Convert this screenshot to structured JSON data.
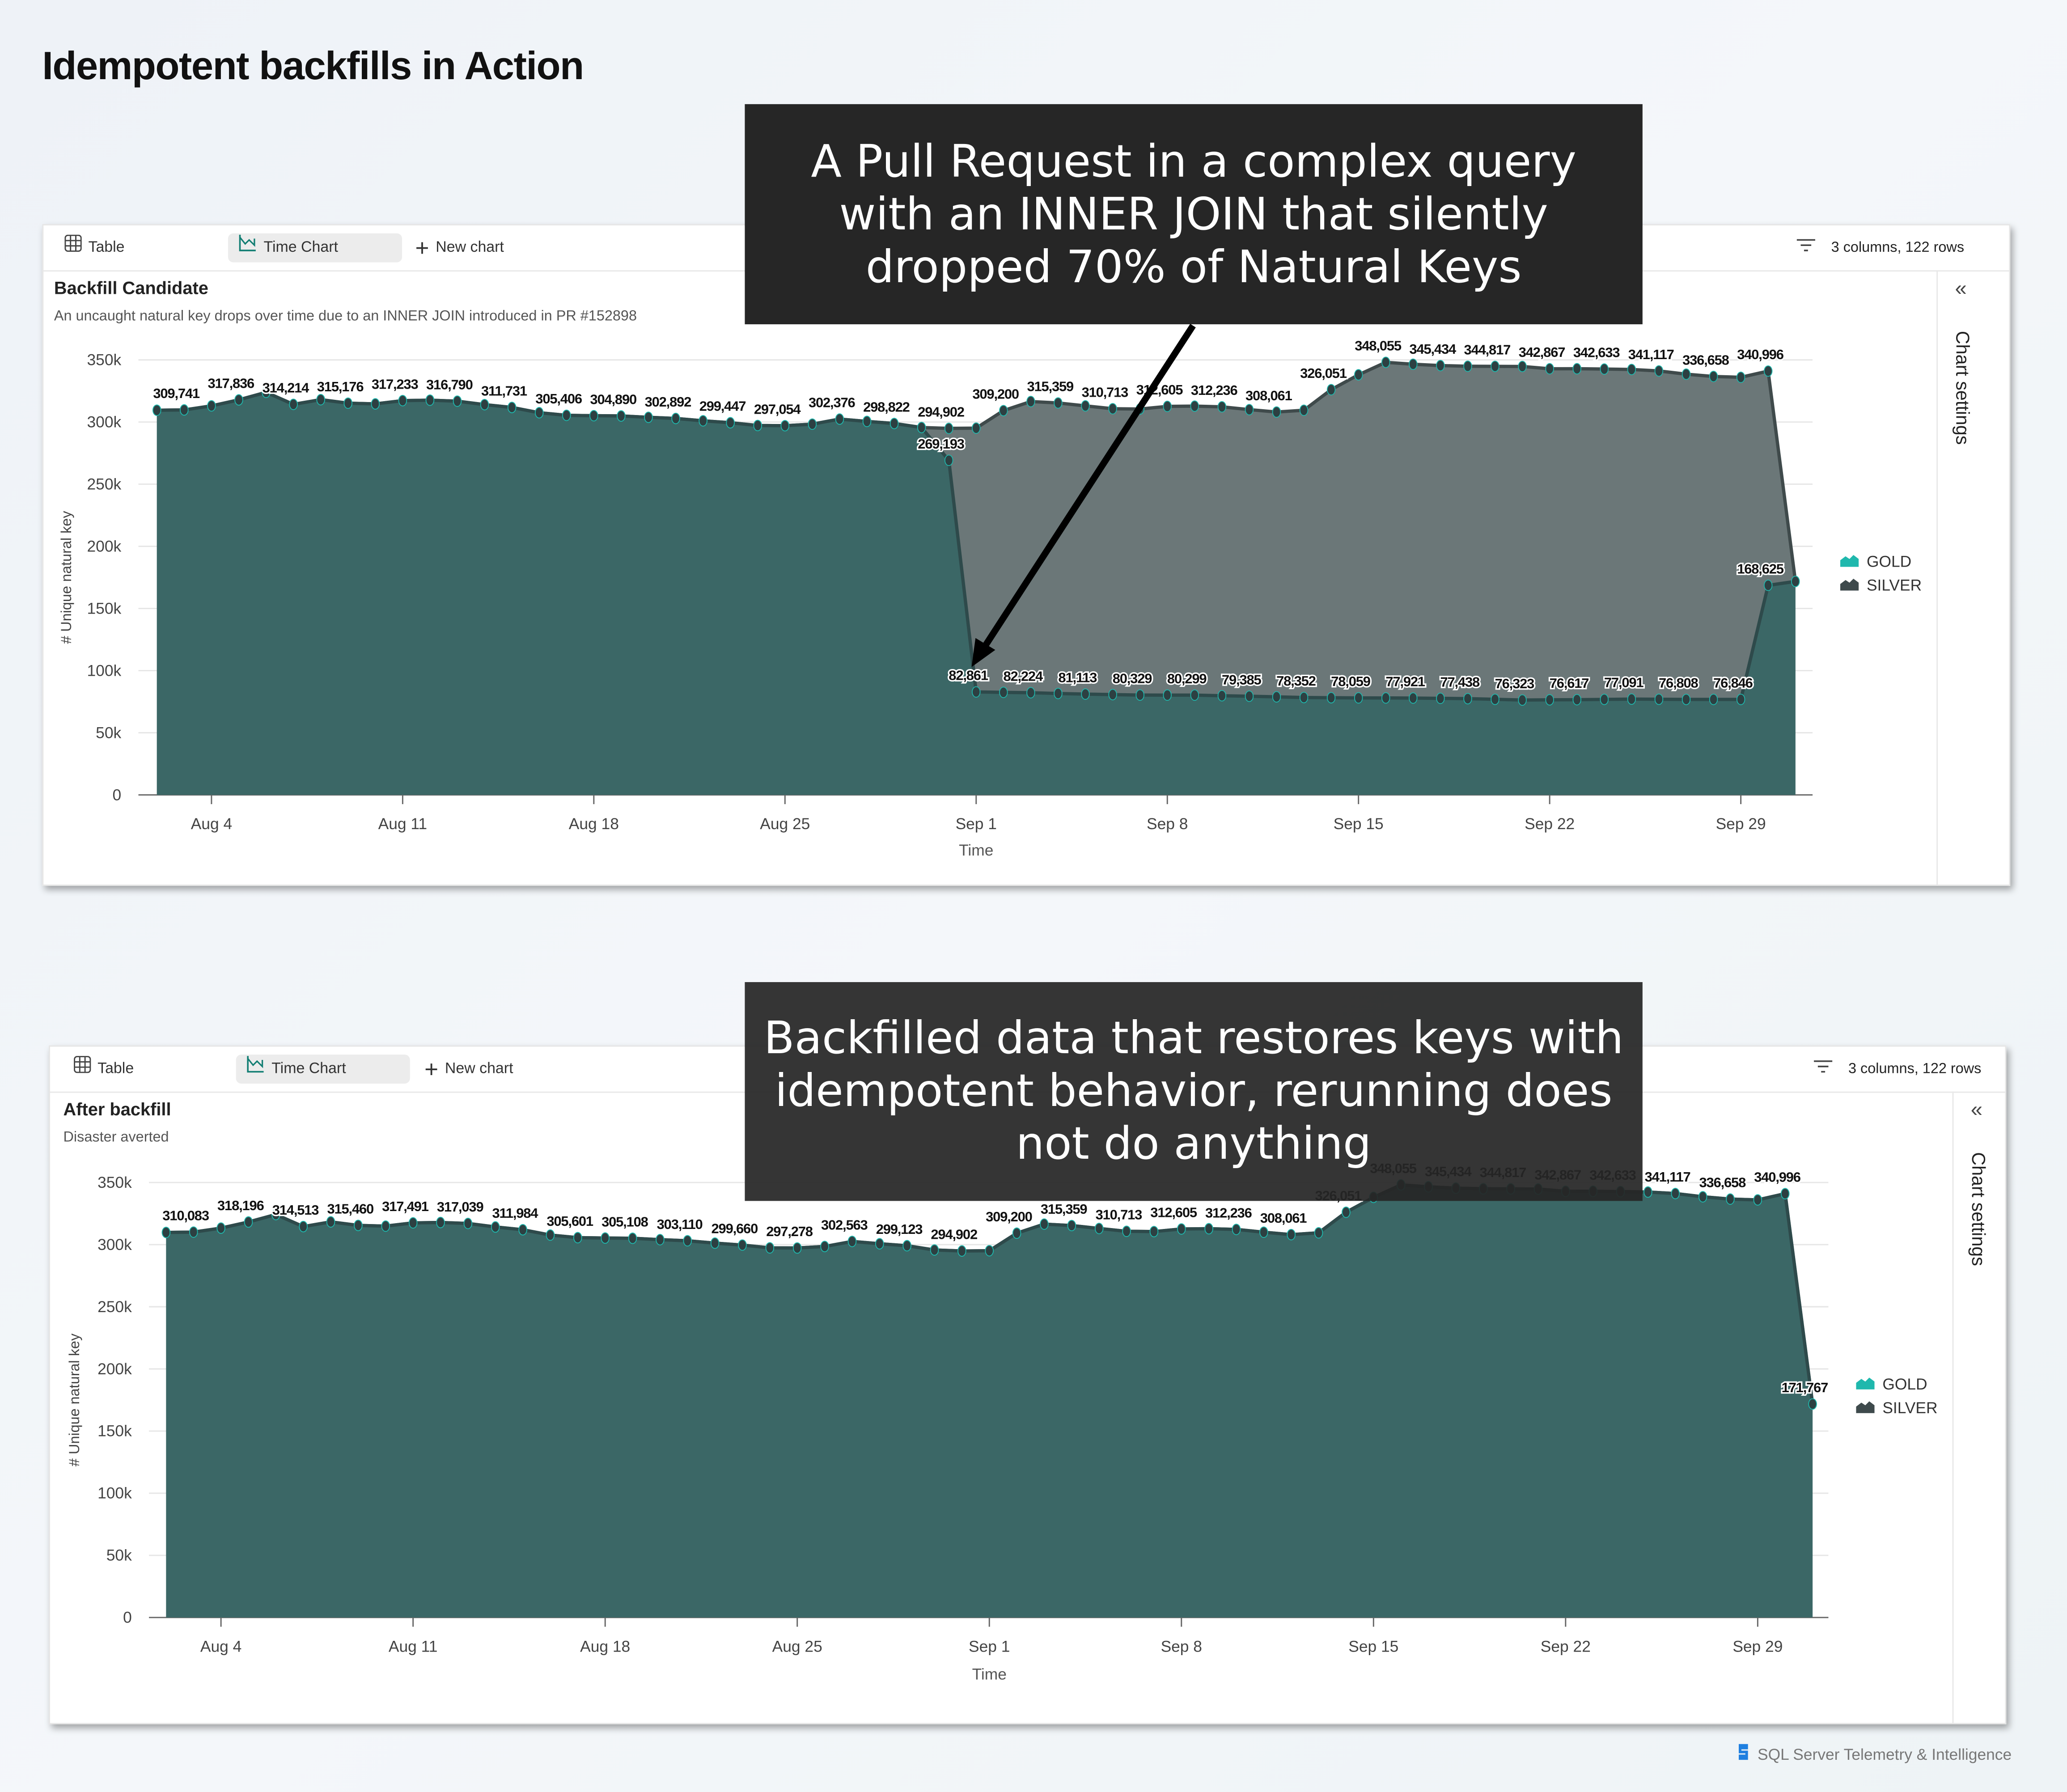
{
  "page_title": "Idempotent backfills in Action",
  "footer": {
    "brand": "SQL Server Telemetry & Intelligence"
  },
  "colors": {
    "gold": "#1fb8ad",
    "silver": "#3e4a4c",
    "gold_area": "#3b6766",
    "silver_area": "#6b7778",
    "callout_bg": "#262626"
  },
  "callouts": [
    {
      "lines": [
        "A Pull Request in a complex query",
        "with an INNER JOIN that silently",
        "dropped 70% of Natural Keys"
      ]
    },
    {
      "lines": [
        "Backfilled data that restores keys with",
        "idempotent behavior, rerunning does",
        "not do anything"
      ]
    }
  ],
  "panels": [
    {
      "toolbar": {
        "table": "Table",
        "time_chart": "Time Chart",
        "new_chart": "New chart",
        "summary": "3 columns, 122 rows"
      },
      "title": "Backfill Candidate",
      "subtitle": "An uncaught natural key drops over time due to an INNER JOIN introduced in PR #152898",
      "side_label": "Chart settings",
      "legend": [
        "GOLD",
        "SILVER"
      ]
    },
    {
      "toolbar": {
        "table": "Table",
        "time_chart": "Time Chart",
        "new_chart": "New chart",
        "summary": "3 columns, 122 rows"
      },
      "title": "After backfill",
      "subtitle": "Disaster averted",
      "side_label": "Chart settings",
      "legend": [
        "GOLD",
        "SILVER"
      ]
    }
  ],
  "chart_data": [
    {
      "type": "area",
      "xlabel": "Time",
      "ylabel": "# Unique natural key",
      "ylim": [
        0,
        350000
      ],
      "y_ticks": [
        {
          "v": 0,
          "t": "0"
        },
        {
          "v": 50000,
          "t": "50k"
        },
        {
          "v": 100000,
          "t": "100k"
        },
        {
          "v": 150000,
          "t": "150k"
        },
        {
          "v": 200000,
          "t": "200k"
        },
        {
          "v": 250000,
          "t": "250k"
        },
        {
          "v": 300000,
          "t": "300k"
        },
        {
          "v": 350000,
          "t": "350k"
        }
      ],
      "x_ticks": [
        "Aug 4",
        "Aug 11",
        "Aug 18",
        "Aug 25",
        "Sep 1",
        "Sep 8",
        "Sep 15",
        "Sep 22",
        "Sep 29"
      ],
      "grid": true,
      "legend_position": "right",
      "x": [
        "Aug 2",
        "Aug 3",
        "Aug 4",
        "Aug 5",
        "Aug 6",
        "Aug 7",
        "Aug 8",
        "Aug 9",
        "Aug 10",
        "Aug 11",
        "Aug 12",
        "Aug 13",
        "Aug 14",
        "Aug 15",
        "Aug 16",
        "Aug 17",
        "Aug 18",
        "Aug 19",
        "Aug 20",
        "Aug 21",
        "Aug 22",
        "Aug 23",
        "Aug 24",
        "Aug 25",
        "Aug 26",
        "Aug 27",
        "Aug 28",
        "Aug 29",
        "Aug 30",
        "Aug 31",
        "Sep 1",
        "Sep 2",
        "Sep 3",
        "Sep 4",
        "Sep 5",
        "Sep 6",
        "Sep 7",
        "Sep 8",
        "Sep 9",
        "Sep 10",
        "Sep 11",
        "Sep 12",
        "Sep 13",
        "Sep 14",
        "Sep 15",
        "Sep 16",
        "Sep 17",
        "Sep 18",
        "Sep 19",
        "Sep 20",
        "Sep 21",
        "Sep 22",
        "Sep 23",
        "Sep 24",
        "Sep 25",
        "Sep 26",
        "Sep 27",
        "Sep 28",
        "Sep 29",
        "Sep 30",
        "Oct 1"
      ],
      "series": [
        {
          "name": "SILVER",
          "values": [
            309500,
            309741,
            313000,
            317836,
            323900,
            314214,
            318000,
            315176,
            314600,
            317233,
            317600,
            316790,
            314000,
            311731,
            307500,
            305406,
            305100,
            304890,
            303800,
            302892,
            301000,
            299447,
            297200,
            297054,
            298300,
            302376,
            300500,
            298822,
            295600,
            294902,
            295100,
            309200,
            316500,
            315359,
            313000,
            310713,
            310500,
            312605,
            312800,
            312236,
            310000,
            308061,
            309500,
            326051,
            338000,
            348055,
            346500,
            345434,
            344900,
            344817,
            344700,
            342867,
            342900,
            342633,
            342300,
            341117,
            338500,
            336658,
            336000,
            340996,
            171767
          ],
          "label_x": [
            "Aug 3",
            "Aug 5",
            "Aug 7",
            "Aug 9",
            "Aug 11",
            "Aug 13",
            "Aug 15",
            "Aug 17",
            "Aug 19",
            "Aug 21",
            "Aug 23",
            "Aug 25",
            "Aug 27",
            "Aug 29",
            "Aug 31",
            "Sep 2",
            "Sep 4",
            "Sep 6",
            "Sep 8",
            "Sep 10",
            "Sep 12",
            "Sep 14",
            "Sep 16",
            "Sep 18",
            "Sep 20",
            "Sep 22",
            "Sep 24",
            "Sep 26",
            "Sep 28",
            "Sep 30"
          ]
        },
        {
          "name": "GOLD",
          "values": [
            309500,
            309741,
            313000,
            317836,
            323900,
            314214,
            318000,
            315176,
            314600,
            317233,
            317600,
            316790,
            314000,
            311731,
            307500,
            305406,
            305100,
            304890,
            303800,
            302892,
            301000,
            299447,
            297200,
            297054,
            298300,
            302376,
            300500,
            298822,
            295600,
            269193,
            82861,
            82500,
            82224,
            81600,
            81113,
            80700,
            80329,
            80300,
            80299,
            79800,
            79385,
            78900,
            78352,
            78200,
            78059,
            78000,
            77921,
            77700,
            77438,
            76900,
            76323,
            76500,
            76617,
            76850,
            77091,
            76950,
            76808,
            76830,
            76846,
            168625,
            171767
          ],
          "label_x": [
            "Aug 31",
            "Sep 1",
            "Sep 3",
            "Sep 5",
            "Sep 7",
            "Sep 9",
            "Sep 11",
            "Sep 13",
            "Sep 15",
            "Sep 17",
            "Sep 19",
            "Sep 21",
            "Sep 23",
            "Sep 25",
            "Sep 27",
            "Sep 29",
            "Sep 30"
          ]
        }
      ]
    },
    {
      "type": "area",
      "xlabel": "Time",
      "ylabel": "# Unique natural key",
      "ylim": [
        0,
        350000
      ],
      "y_ticks": [
        {
          "v": 0,
          "t": "0"
        },
        {
          "v": 50000,
          "t": "50k"
        },
        {
          "v": 100000,
          "t": "100k"
        },
        {
          "v": 150000,
          "t": "150k"
        },
        {
          "v": 200000,
          "t": "200k"
        },
        {
          "v": 250000,
          "t": "250k"
        },
        {
          "v": 300000,
          "t": "300k"
        },
        {
          "v": 350000,
          "t": "350k"
        }
      ],
      "x_ticks": [
        "Aug 4",
        "Aug 11",
        "Aug 18",
        "Aug 25",
        "Sep 1",
        "Sep 8",
        "Sep 15",
        "Sep 22",
        "Sep 29"
      ],
      "grid": true,
      "legend_position": "right",
      "x": [
        "Aug 2",
        "Aug 3",
        "Aug 4",
        "Aug 5",
        "Aug 6",
        "Aug 7",
        "Aug 8",
        "Aug 9",
        "Aug 10",
        "Aug 11",
        "Aug 12",
        "Aug 13",
        "Aug 14",
        "Aug 15",
        "Aug 16",
        "Aug 17",
        "Aug 18",
        "Aug 19",
        "Aug 20",
        "Aug 21",
        "Aug 22",
        "Aug 23",
        "Aug 24",
        "Aug 25",
        "Aug 26",
        "Aug 27",
        "Aug 28",
        "Aug 29",
        "Aug 30",
        "Aug 31",
        "Sep 1",
        "Sep 2",
        "Sep 3",
        "Sep 4",
        "Sep 5",
        "Sep 6",
        "Sep 7",
        "Sep 8",
        "Sep 9",
        "Sep 10",
        "Sep 11",
        "Sep 12",
        "Sep 13",
        "Sep 14",
        "Sep 15",
        "Sep 16",
        "Sep 17",
        "Sep 18",
        "Sep 19",
        "Sep 20",
        "Sep 21",
        "Sep 22",
        "Sep 23",
        "Sep 24",
        "Sep 25",
        "Sep 26",
        "Sep 27",
        "Sep 28",
        "Sep 29",
        "Sep 30",
        "Oct 1"
      ],
      "series": [
        {
          "name": "SILVER",
          "values": [
            309800,
            310083,
            313300,
            318196,
            324200,
            314513,
            318300,
            315460,
            314900,
            317491,
            317800,
            317039,
            314200,
            311984,
            307700,
            305601,
            305300,
            305108,
            304000,
            303110,
            301200,
            299660,
            297400,
            297278,
            298500,
            302563,
            300700,
            299123,
            295700,
            294902,
            295100,
            309200,
            316500,
            315359,
            313000,
            310713,
            310500,
            312605,
            312800,
            312236,
            310000,
            308061,
            309500,
            326051,
            338000,
            348055,
            346500,
            345434,
            344900,
            344817,
            344700,
            342867,
            342900,
            342633,
            342300,
            341117,
            338500,
            336658,
            336000,
            340996,
            171767
          ],
          "label_x": [
            "Aug 3",
            "Aug 5",
            "Aug 7",
            "Aug 9",
            "Aug 11",
            "Aug 13",
            "Aug 15",
            "Aug 17",
            "Aug 19",
            "Aug 21",
            "Aug 23",
            "Aug 25",
            "Aug 27",
            "Aug 29",
            "Aug 31",
            "Sep 2",
            "Sep 4",
            "Sep 6",
            "Sep 8",
            "Sep 10",
            "Sep 12",
            "Sep 14",
            "Sep 16",
            "Sep 18",
            "Sep 20",
            "Sep 22",
            "Sep 24",
            "Sep 26",
            "Sep 28",
            "Sep 30",
            "Oct 1"
          ]
        },
        {
          "name": "GOLD",
          "values": [
            309800,
            310083,
            313300,
            318196,
            324200,
            314513,
            318300,
            315460,
            314900,
            317491,
            317800,
            317039,
            314200,
            311984,
            307700,
            305601,
            305300,
            305108,
            304000,
            303110,
            301200,
            299660,
            297400,
            297278,
            298500,
            302563,
            300700,
            299123,
            295700,
            294902,
            295100,
            309200,
            316500,
            315359,
            313000,
            310713,
            310500,
            312605,
            312800,
            312236,
            310000,
            308061,
            309500,
            326051,
            338000,
            348055,
            346500,
            345434,
            344900,
            344817,
            344700,
            342867,
            342900,
            342633,
            342300,
            341117,
            338500,
            336658,
            336000,
            340996,
            171767
          ],
          "label_x": []
        }
      ]
    }
  ]
}
